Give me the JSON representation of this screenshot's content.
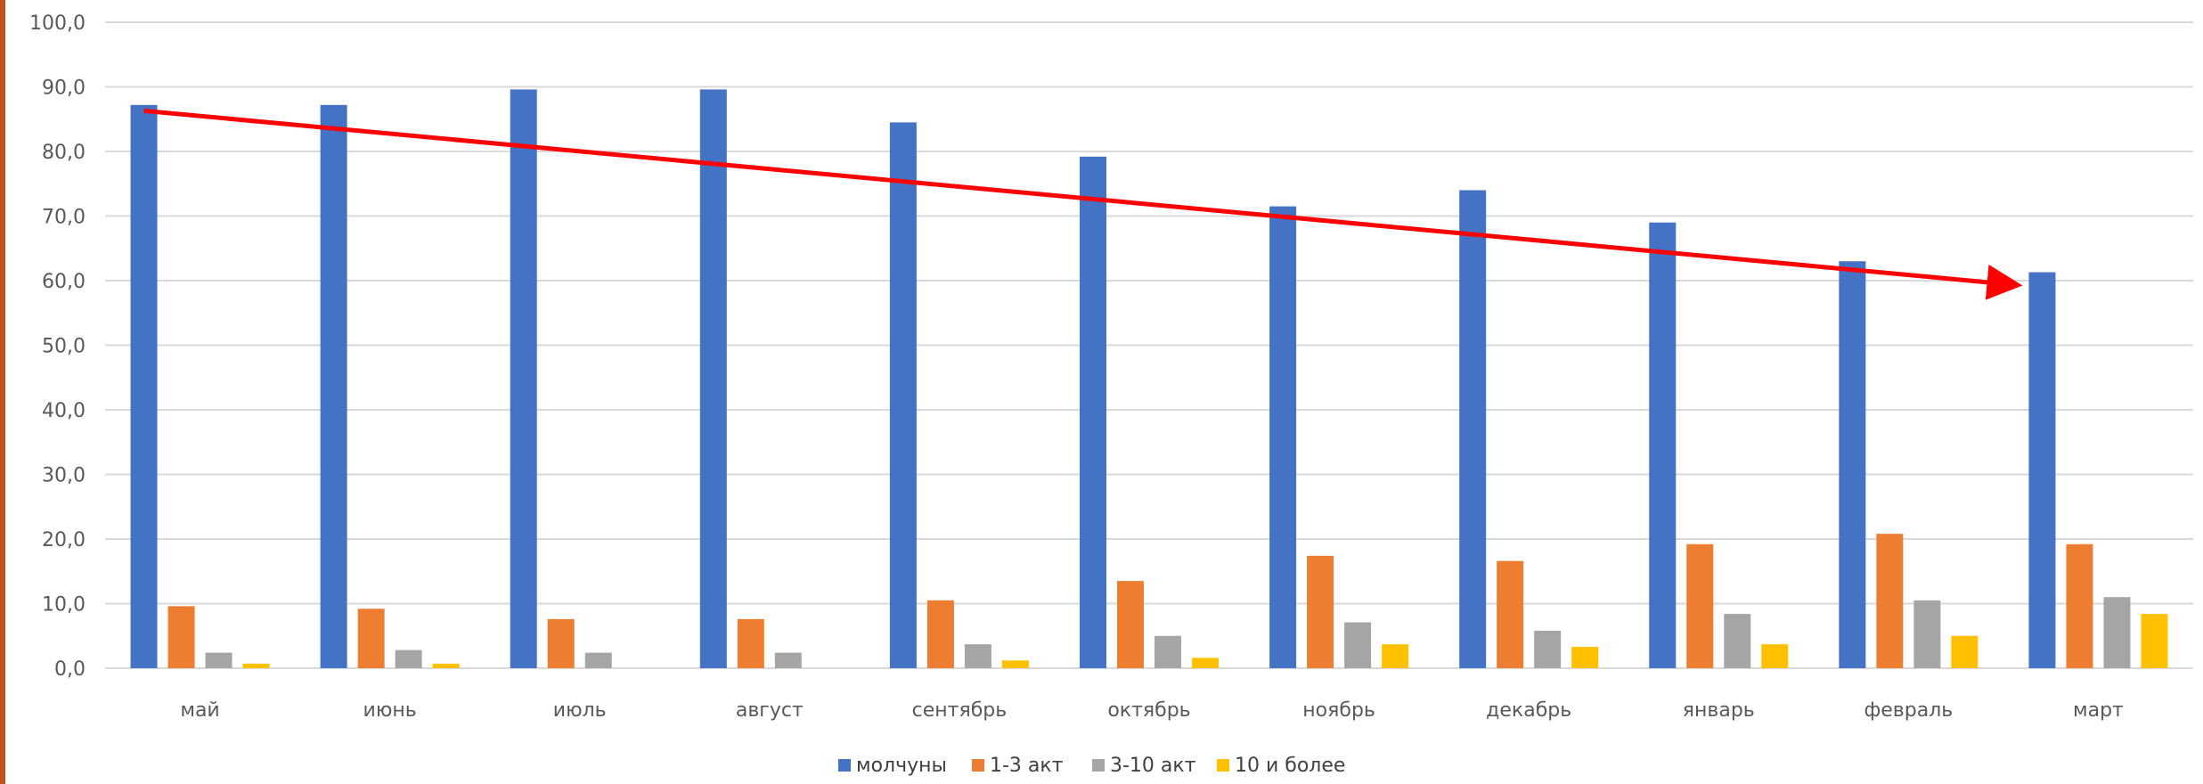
{
  "chart_data": {
    "type": "bar",
    "categories": [
      "май",
      "июнь",
      "июль",
      "август",
      "сентябрь",
      "октябрь",
      "ноябрь",
      "декабрь",
      "январь",
      "февраль",
      "март"
    ],
    "series": [
      {
        "name": "молчуны",
        "color": "#4472c4",
        "values": [
          87.2,
          87.2,
          89.6,
          89.6,
          84.5,
          79.2,
          71.5,
          74.0,
          69.0,
          63.0,
          61.3
        ]
      },
      {
        "name": "1-3 акт",
        "color": "#ed7d31",
        "values": [
          9.6,
          9.2,
          7.6,
          7.6,
          10.5,
          13.5,
          17.4,
          16.6,
          19.2,
          20.8,
          19.2
        ]
      },
      {
        "name": "3-10 акт",
        "color": "#a5a5a5",
        "values": [
          2.4,
          2.8,
          2.4,
          2.4,
          3.7,
          5.0,
          7.1,
          5.8,
          8.4,
          10.5,
          11.0
        ]
      },
      {
        "name": "10 и более",
        "color": "#ffc000",
        "values": [
          0.7,
          0.7,
          0.0,
          0.0,
          1.2,
          1.6,
          3.7,
          3.3,
          3.7,
          5.0,
          8.4
        ]
      }
    ],
    "y_ticks": [
      "0,0",
      "10,0",
      "20,0",
      "30,0",
      "40,0",
      "50,0",
      "60,0",
      "70,0",
      "80,0",
      "90,0",
      "100,0"
    ],
    "ylim": [
      0,
      100
    ],
    "grid": true,
    "legend": "bottom",
    "trend_arrow": {
      "color": "#ff0000",
      "from": {
        "category": "май",
        "value": 86.3
      },
      "to": {
        "category": "март",
        "value": 59.3
      }
    }
  }
}
